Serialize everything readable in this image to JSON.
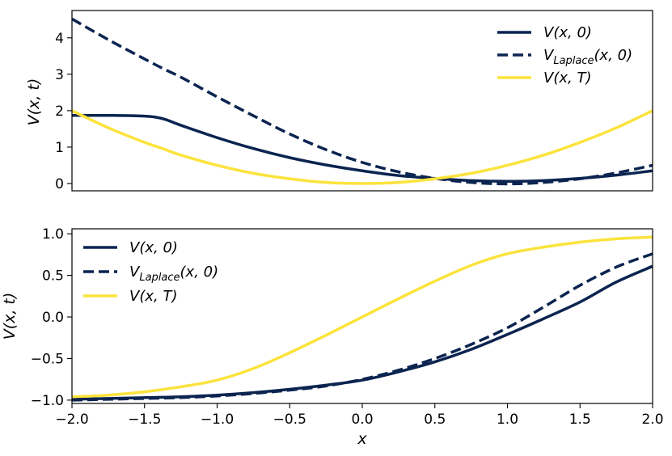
{
  "colors": {
    "navy": "#0b2450",
    "yellow": "#fbe33c"
  },
  "chart_data": [
    {
      "type": "line",
      "panel": "top",
      "xlabel": "",
      "ylabel": "V(x, t)",
      "xlim": [
        -2.0,
        2.0
      ],
      "ylim": [
        -0.2,
        4.75
      ],
      "xticks": [],
      "yticks": [
        0,
        1,
        2,
        3,
        4
      ],
      "ytick_labels": [
        "0",
        "1",
        "2",
        "3",
        "4"
      ],
      "legend_position": "top-right",
      "x": [
        -2.0,
        -1.75,
        -1.5,
        -1.375,
        -1.25,
        -1.0,
        -0.75,
        -0.5,
        -0.25,
        0.0,
        0.25,
        0.5,
        0.75,
        1.0,
        1.25,
        1.5,
        1.75,
        2.0
      ],
      "series": [
        {
          "name": "V(x, 0)",
          "legend_main": "V",
          "legend_sub": "",
          "legend_args": "(x, 0)",
          "color": "navy",
          "dash": "solid",
          "values": [
            1.87,
            1.87,
            1.85,
            1.78,
            1.6,
            1.26,
            0.96,
            0.71,
            0.51,
            0.35,
            0.22,
            0.14,
            0.08,
            0.06,
            0.08,
            0.14,
            0.23,
            0.35
          ]
        },
        {
          "name": "V_Laplace(x, 0)",
          "legend_main": "V",
          "legend_sub": "Laplace",
          "legend_args": "(x, 0)",
          "color": "navy",
          "dash": "dashed",
          "values": [
            4.52,
            3.95,
            3.42,
            3.16,
            2.92,
            2.38,
            1.86,
            1.36,
            0.93,
            0.58,
            0.32,
            0.14,
            0.03,
            -0.01,
            0.03,
            0.13,
            0.29,
            0.5
          ]
        },
        {
          "name": "V(x, T)",
          "legend_main": "V",
          "legend_sub": "",
          "legend_args": "(x, T)",
          "color": "yellow",
          "dash": "solid",
          "values": [
            2.0,
            1.53,
            1.13,
            0.96,
            0.78,
            0.5,
            0.28,
            0.13,
            0.03,
            0.0,
            0.03,
            0.13,
            0.28,
            0.5,
            0.78,
            1.13,
            1.53,
            2.0
          ]
        }
      ]
    },
    {
      "type": "line",
      "panel": "bottom",
      "xlabel": "x",
      "ylabel": "V(x, t)",
      "xlim": [
        -2.0,
        2.0
      ],
      "ylim": [
        -1.04,
        1.06
      ],
      "xticks": [
        -2.0,
        -1.5,
        -1.0,
        -0.5,
        0.0,
        0.5,
        1.0,
        1.5,
        2.0
      ],
      "xtick_labels": [
        "−2.0",
        "−1.5",
        "−1.0",
        "−0.5",
        "0.0",
        "0.5",
        "1.0",
        "1.5",
        "2.0"
      ],
      "yticks": [
        -1.0,
        -0.5,
        0.0,
        0.5,
        1.0
      ],
      "ytick_labels": [
        "−1.0",
        "−0.5",
        "0.0",
        "0.5",
        "1.0"
      ],
      "legend_position": "top-left",
      "x": [
        -2.0,
        -1.75,
        -1.5,
        -1.25,
        -1.0,
        -0.75,
        -0.5,
        -0.25,
        0.0,
        0.25,
        0.5,
        0.75,
        1.0,
        1.25,
        1.5,
        1.75,
        2.0
      ],
      "series": [
        {
          "name": "V(x, 0)",
          "legend_main": "V",
          "legend_sub": "",
          "legend_args": "(x, 0)",
          "color": "navy",
          "dash": "solid",
          "values": [
            -0.99,
            -0.98,
            -0.97,
            -0.96,
            -0.94,
            -0.91,
            -0.87,
            -0.82,
            -0.76,
            -0.66,
            -0.54,
            -0.39,
            -0.21,
            -0.02,
            0.18,
            0.42,
            0.61
          ]
        },
        {
          "name": "V_Laplace(x, 0)",
          "legend_main": "V",
          "legend_sub": "Laplace",
          "legend_args": "(x, 0)",
          "color": "navy",
          "dash": "dashed",
          "values": [
            -1.0,
            -0.99,
            -0.98,
            -0.97,
            -0.95,
            -0.92,
            -0.88,
            -0.83,
            -0.75,
            -0.64,
            -0.5,
            -0.33,
            -0.13,
            0.12,
            0.38,
            0.6,
            0.76
          ]
        },
        {
          "name": "V(x, T)",
          "legend_main": "V",
          "legend_sub": "",
          "legend_args": "(x, T)",
          "color": "yellow",
          "dash": "solid",
          "values": [
            -0.96,
            -0.94,
            -0.9,
            -0.84,
            -0.76,
            -0.62,
            -0.43,
            -0.22,
            0.0,
            0.22,
            0.43,
            0.62,
            0.76,
            0.84,
            0.9,
            0.94,
            0.96
          ]
        }
      ]
    }
  ]
}
